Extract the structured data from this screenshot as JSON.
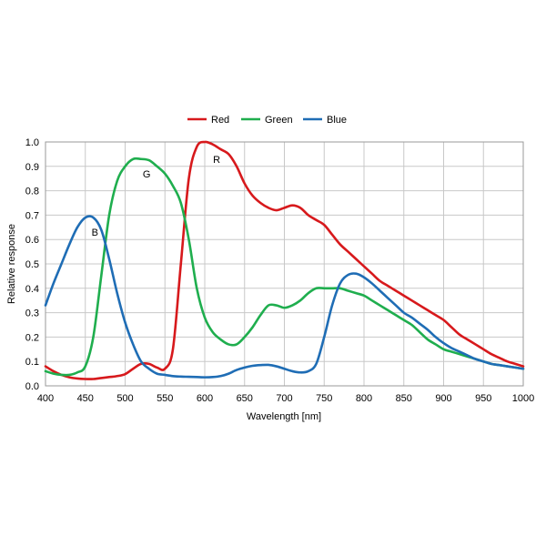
{
  "chart_data": {
    "type": "line",
    "xlabel": "Wavelength [nm]",
    "ylabel": "Relative response",
    "xlim": [
      400,
      1000
    ],
    "ylim": [
      0,
      1.0
    ],
    "x_ticks": [
      "400",
      "450",
      "500",
      "550",
      "600",
      "650",
      "700",
      "750",
      "800",
      "850",
      "900",
      "950",
      "1000"
    ],
    "y_ticks": [
      "0.0",
      "0.1",
      "0.2",
      "0.3",
      "0.4",
      "0.5",
      "0.6",
      "0.7",
      "0.8",
      "0.9",
      "1.0"
    ],
    "grid": true,
    "legend_position": "top",
    "series": [
      {
        "name": "Red",
        "color": "#d7191c",
        "x": [
          400,
          410,
          420,
          430,
          440,
          450,
          460,
          470,
          480,
          490,
          500,
          510,
          520,
          530,
          540,
          550,
          560,
          570,
          580,
          590,
          600,
          610,
          620,
          630,
          640,
          650,
          660,
          670,
          680,
          690,
          700,
          710,
          720,
          730,
          740,
          750,
          760,
          770,
          780,
          790,
          800,
          810,
          820,
          830,
          840,
          850,
          860,
          870,
          880,
          890,
          900,
          910,
          920,
          930,
          940,
          950,
          960,
          970,
          980,
          990,
          1000
        ],
        "y": [
          0.08,
          0.06,
          0.045,
          0.035,
          0.03,
          0.028,
          0.028,
          0.032,
          0.036,
          0.04,
          0.048,
          0.07,
          0.09,
          0.09,
          0.075,
          0.07,
          0.15,
          0.5,
          0.85,
          0.98,
          1.0,
          0.99,
          0.97,
          0.95,
          0.9,
          0.83,
          0.78,
          0.75,
          0.73,
          0.72,
          0.73,
          0.74,
          0.73,
          0.7,
          0.68,
          0.66,
          0.62,
          0.58,
          0.55,
          0.52,
          0.49,
          0.46,
          0.43,
          0.41,
          0.39,
          0.37,
          0.35,
          0.33,
          0.31,
          0.29,
          0.27,
          0.24,
          0.21,
          0.19,
          0.17,
          0.15,
          0.13,
          0.115,
          0.1,
          0.09,
          0.08
        ]
      },
      {
        "name": "Green",
        "color": "#1fae4e",
        "x": [
          400,
          410,
          420,
          430,
          440,
          450,
          460,
          470,
          480,
          490,
          500,
          510,
          520,
          530,
          540,
          550,
          560,
          570,
          580,
          590,
          600,
          610,
          620,
          630,
          640,
          650,
          660,
          670,
          680,
          690,
          700,
          710,
          720,
          730,
          740,
          750,
          760,
          770,
          780,
          790,
          800,
          810,
          820,
          830,
          840,
          850,
          860,
          870,
          880,
          890,
          900,
          910,
          920,
          930,
          940,
          950,
          960,
          970,
          980,
          990,
          1000
        ],
        "y": [
          0.06,
          0.05,
          0.045,
          0.045,
          0.055,
          0.08,
          0.2,
          0.45,
          0.7,
          0.84,
          0.9,
          0.93,
          0.93,
          0.925,
          0.9,
          0.87,
          0.82,
          0.75,
          0.6,
          0.4,
          0.28,
          0.22,
          0.19,
          0.17,
          0.17,
          0.2,
          0.24,
          0.29,
          0.33,
          0.33,
          0.32,
          0.33,
          0.35,
          0.38,
          0.4,
          0.4,
          0.4,
          0.4,
          0.39,
          0.38,
          0.37,
          0.35,
          0.33,
          0.31,
          0.29,
          0.27,
          0.25,
          0.22,
          0.19,
          0.17,
          0.15,
          0.14,
          0.13,
          0.12,
          0.11,
          0.1,
          0.09,
          0.085,
          0.08,
          0.075,
          0.07
        ]
      },
      {
        "name": "Blue",
        "color": "#1f6db5",
        "x": [
          400,
          410,
          420,
          430,
          440,
          450,
          460,
          470,
          480,
          490,
          500,
          510,
          520,
          530,
          540,
          550,
          560,
          570,
          580,
          590,
          600,
          610,
          620,
          630,
          640,
          650,
          660,
          670,
          680,
          690,
          700,
          710,
          720,
          730,
          740,
          750,
          760,
          770,
          780,
          790,
          800,
          810,
          820,
          830,
          840,
          850,
          860,
          870,
          880,
          890,
          900,
          910,
          920,
          930,
          940,
          950,
          960,
          970,
          980,
          990,
          1000
        ],
        "y": [
          0.33,
          0.42,
          0.5,
          0.58,
          0.65,
          0.69,
          0.69,
          0.64,
          0.52,
          0.38,
          0.26,
          0.17,
          0.1,
          0.07,
          0.05,
          0.045,
          0.04,
          0.038,
          0.037,
          0.036,
          0.035,
          0.036,
          0.04,
          0.05,
          0.065,
          0.075,
          0.082,
          0.085,
          0.086,
          0.08,
          0.07,
          0.06,
          0.055,
          0.06,
          0.09,
          0.2,
          0.33,
          0.42,
          0.455,
          0.46,
          0.445,
          0.42,
          0.39,
          0.36,
          0.33,
          0.3,
          0.28,
          0.255,
          0.23,
          0.2,
          0.175,
          0.155,
          0.14,
          0.125,
          0.11,
          0.1,
          0.09,
          0.085,
          0.08,
          0.075,
          0.07
        ]
      }
    ],
    "annotations": [
      {
        "text": "R",
        "x": 615,
        "y": 0.93
      },
      {
        "text": "G",
        "x": 527,
        "y": 0.87
      },
      {
        "text": "B",
        "x": 462,
        "y": 0.63
      }
    ]
  }
}
